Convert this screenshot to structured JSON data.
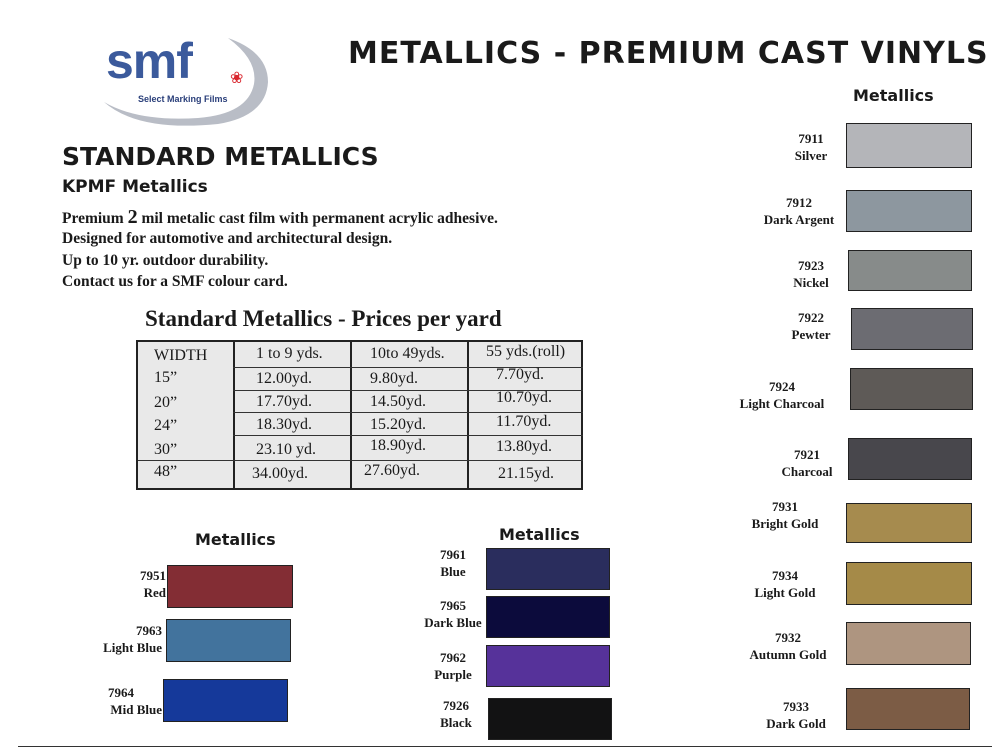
{
  "logo": {
    "brand": "smf",
    "tagline": "Select Marking Films"
  },
  "title": "METALLICS - PREMIUM CAST VINYLS",
  "section": {
    "title": "STANDARD METALLICS",
    "subtitle": "KPMF Metallics",
    "lines": [
      {
        "pre": "Premium ",
        "em": "2",
        "post": " mil metalic cast film with permanent acrylic adhesive."
      },
      {
        "pre": "Designed for automotive and architectural design.",
        "em": "",
        "post": ""
      },
      {
        "pre": "Up to 10 yr. outdoor durability.",
        "em": "",
        "post": ""
      },
      {
        "pre": "Contact us for a SMF colour card.",
        "em": "",
        "post": ""
      }
    ]
  },
  "price_table": {
    "title": "Standard Metallics  -  Prices per yard",
    "headers": [
      "WIDTH",
      "1 to 9 yds.",
      "10to 49yds.",
      "55 yds.(roll)"
    ],
    "rows": [
      [
        "15”",
        "12.00yd.",
        "9.80yd.",
        "7.70yd."
      ],
      [
        "20”",
        "17.70yd.",
        "14.50yd.",
        "10.70yd."
      ],
      [
        "24”",
        "18.30yd.",
        "15.20yd.",
        "11.70yd."
      ],
      [
        "30”",
        "23.10 yd.",
        "18.90yd.",
        "13.80yd."
      ],
      [
        "48”",
        "34.00yd.",
        "27.60yd.",
        "21.15yd."
      ]
    ]
  },
  "right_column": {
    "heading": "Metallics",
    "swatches": [
      {
        "code": "7911",
        "name": "Silver",
        "color": "#b4b5b9"
      },
      {
        "code": "7912",
        "name": "Dark Argent",
        "color": "#8d979f"
      },
      {
        "code": "7923",
        "name": "Nickel",
        "color": "#878b8a"
      },
      {
        "code": "7922",
        "name": "Pewter",
        "color": "#6c6c72"
      },
      {
        "code": "7924",
        "name": "Light Charcoal",
        "color": "#5e5a57"
      },
      {
        "code": "7921",
        "name": "Charcoal",
        "color": "#48474c"
      },
      {
        "code": "7931",
        "name": "Bright Gold",
        "color": "#a68b4e"
      },
      {
        "code": "7934",
        "name": "Light Gold",
        "color": "#a58a48"
      },
      {
        "code": "7932",
        "name": "Autumn Gold",
        "color": "#ae9580"
      },
      {
        "code": "7933",
        "name": "Dark Gold",
        "color": "#7c5c45"
      }
    ]
  },
  "left_group": {
    "heading": "Metallics",
    "swatches": [
      {
        "code": "7951",
        "name": "Red",
        "color": "#832d34"
      },
      {
        "code": "7963",
        "name": "Light Blue",
        "color": "#42739d"
      },
      {
        "code": "7964",
        "name": "Mid Blue",
        "color": "#15399a"
      }
    ]
  },
  "mid_group": {
    "heading": "Metallics",
    "swatches": [
      {
        "code": "7961",
        "name": "Blue",
        "color": "#2a2d5d"
      },
      {
        "code": "7965",
        "name": "Dark Blue",
        "color": "#0c0b3c"
      },
      {
        "code": "7962",
        "name": "Purple",
        "color": "#56329a"
      },
      {
        "code": "7926",
        "name": "Black",
        "color": "#121213"
      }
    ]
  }
}
